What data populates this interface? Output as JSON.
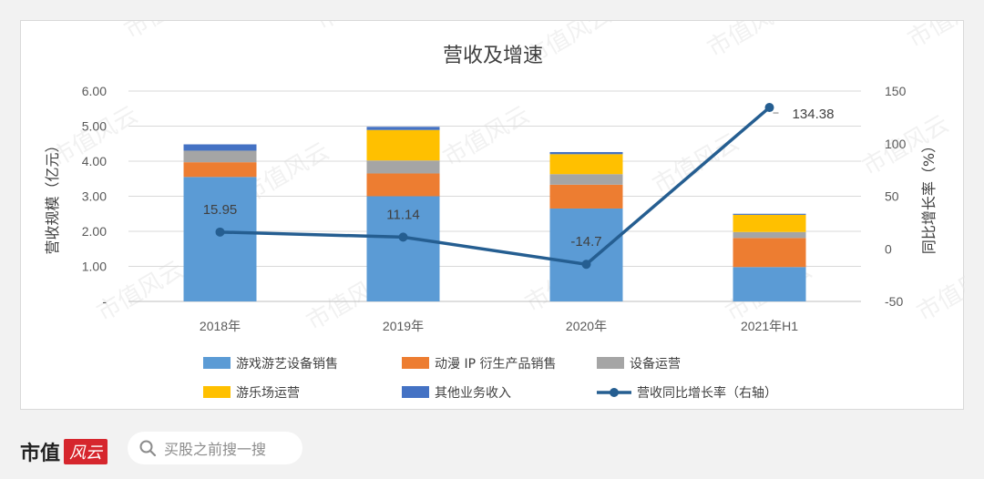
{
  "footer": {
    "brand": "市值",
    "brand_badge": "风云",
    "search_placeholder": "买股之前搜一搜"
  },
  "watermark": "市值风云",
  "colors": {
    "game": "#5b9bd5",
    "ip": "#ed7d31",
    "equip": "#a5a5a5",
    "amuse": "#ffc000",
    "other": "#4472c4",
    "line": "#255e91"
  },
  "chart_data": {
    "type": "bar",
    "title": "营收及增速",
    "ylabel": "营收规模（亿元）",
    "y2label": "同比增长率（%）",
    "categories": [
      "2018年",
      "2019年",
      "2020年",
      "2021年H1"
    ],
    "ylim": [
      0,
      6
    ],
    "yticks": [
      "-",
      "1.00",
      "2.00",
      "3.00",
      "4.00",
      "5.00",
      "6.00"
    ],
    "y2lim": [
      -50,
      150
    ],
    "y2ticks": [
      "-50",
      "0",
      "50",
      "100",
      "150"
    ],
    "stacked": true,
    "series": [
      {
        "name": "游戏游艺设备销售",
        "color_key": "game",
        "values": [
          3.55,
          3.0,
          2.65,
          0.98
        ]
      },
      {
        "name": "动漫 IP 衍生产品销售",
        "color_key": "ip",
        "values": [
          0.42,
          0.65,
          0.68,
          0.83
        ]
      },
      {
        "name": "设备运营",
        "color_key": "equip",
        "values": [
          0.33,
          0.37,
          0.3,
          0.17
        ]
      },
      {
        "name": "游乐场运营",
        "color_key": "amuse",
        "values": [
          0.0,
          0.87,
          0.57,
          0.49
        ]
      },
      {
        "name": "其他业务收入",
        "color_key": "other",
        "values": [
          0.18,
          0.09,
          0.06,
          0.03
        ]
      }
    ],
    "line_series": {
      "name": "营收同比增长率（右轴）",
      "axis": "right",
      "values": [
        15.95,
        11.14,
        -14.7,
        134.38
      ],
      "labels": [
        "15.95",
        "11.14",
        "-14.7",
        "134.38"
      ]
    },
    "legend": [
      {
        "label": "游戏游艺设备销售",
        "kind": "box",
        "color_key": "game"
      },
      {
        "label": "动漫 IP 衍生产品销售",
        "kind": "box",
        "color_key": "ip"
      },
      {
        "label": "设备运营",
        "kind": "box",
        "color_key": "equip"
      },
      {
        "label": "游乐场运营",
        "kind": "box",
        "color_key": "amuse"
      },
      {
        "label": "其他业务收入",
        "kind": "box",
        "color_key": "other"
      },
      {
        "label": "营收同比增长率（右轴）",
        "kind": "line",
        "color_key": "line"
      }
    ],
    "legend_position": "bottom",
    "grid": true
  }
}
